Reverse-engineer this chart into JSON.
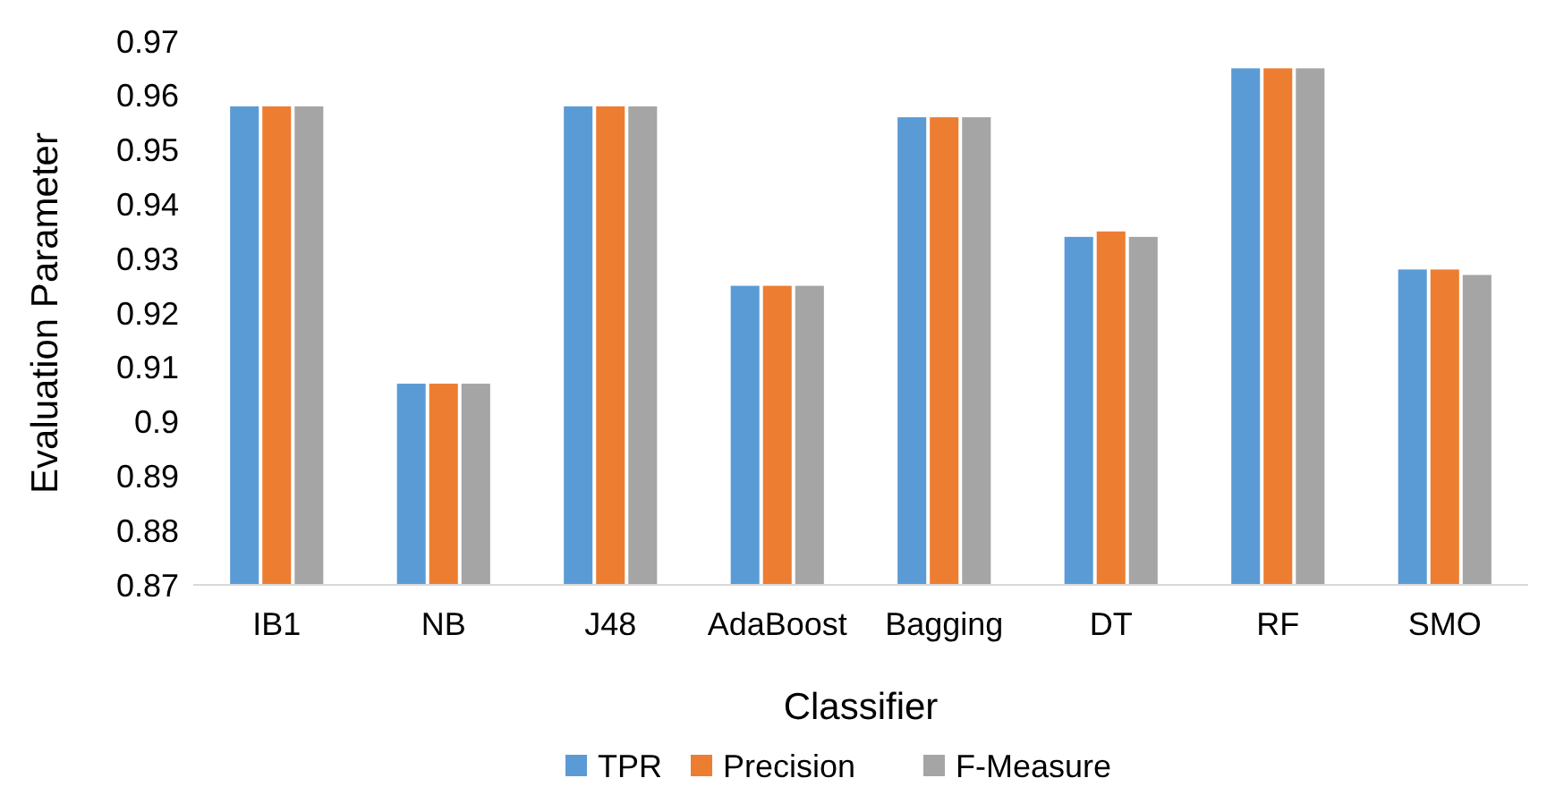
{
  "chart_data": {
    "type": "bar",
    "xlabel": "Classifier",
    "ylabel": "Evaluation Parameter",
    "categories": [
      "IB1",
      "NB",
      "J48",
      "AdaBoost",
      "Bagging",
      "DT",
      "RF",
      "SMO"
    ],
    "series": [
      {
        "name": "TPR",
        "color": "#5b9bd5",
        "values": [
          0.958,
          0.907,
          0.958,
          0.925,
          0.956,
          0.934,
          0.965,
          0.928
        ]
      },
      {
        "name": "Precision",
        "color": "#ed7d31",
        "values": [
          0.958,
          0.907,
          0.958,
          0.925,
          0.956,
          0.935,
          0.965,
          0.928
        ]
      },
      {
        "name": "F-Measure",
        "color": "#a5a5a5",
        "values": [
          0.958,
          0.907,
          0.958,
          0.925,
          0.956,
          0.934,
          0.965,
          0.927
        ]
      }
    ],
    "ylim": [
      0.87,
      0.97
    ],
    "yticks": [
      0.87,
      0.88,
      0.89,
      0.9,
      0.91,
      0.92,
      0.93,
      0.94,
      0.95,
      0.96,
      0.97
    ],
    "grid": false,
    "legend": "bottom"
  }
}
